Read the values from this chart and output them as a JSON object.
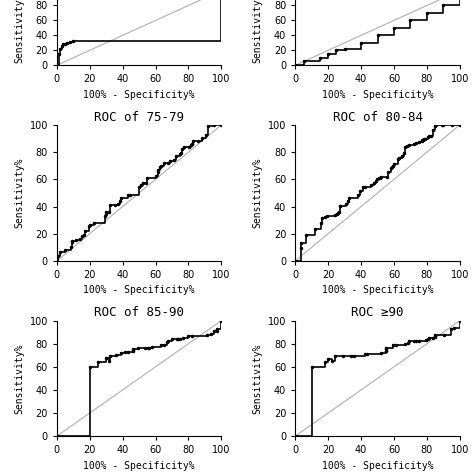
{
  "titles_row2": [
    "ROC of 75-79",
    "ROC of 80-84"
  ],
  "titles_row3": [
    "ROC of 85-90",
    "ROC ≥90"
  ],
  "xlabel": "100% - Specificity%",
  "ylabel": "Sensitivity%",
  "xlim": [
    0,
    100
  ],
  "ylim": [
    0,
    100
  ],
  "background_color": "#ffffff",
  "curve_color": "#000000",
  "diag_color": "#b0b0b0",
  "marker": ".",
  "marker_size": 3,
  "line_width": 1.2,
  "fontsize_title": 9,
  "fontsize_tick": 7,
  "fontsize_label": 7,
  "xticks": [
    0,
    20,
    40,
    60,
    80,
    100
  ],
  "yticks": [
    0,
    20,
    40,
    60,
    80,
    100
  ]
}
